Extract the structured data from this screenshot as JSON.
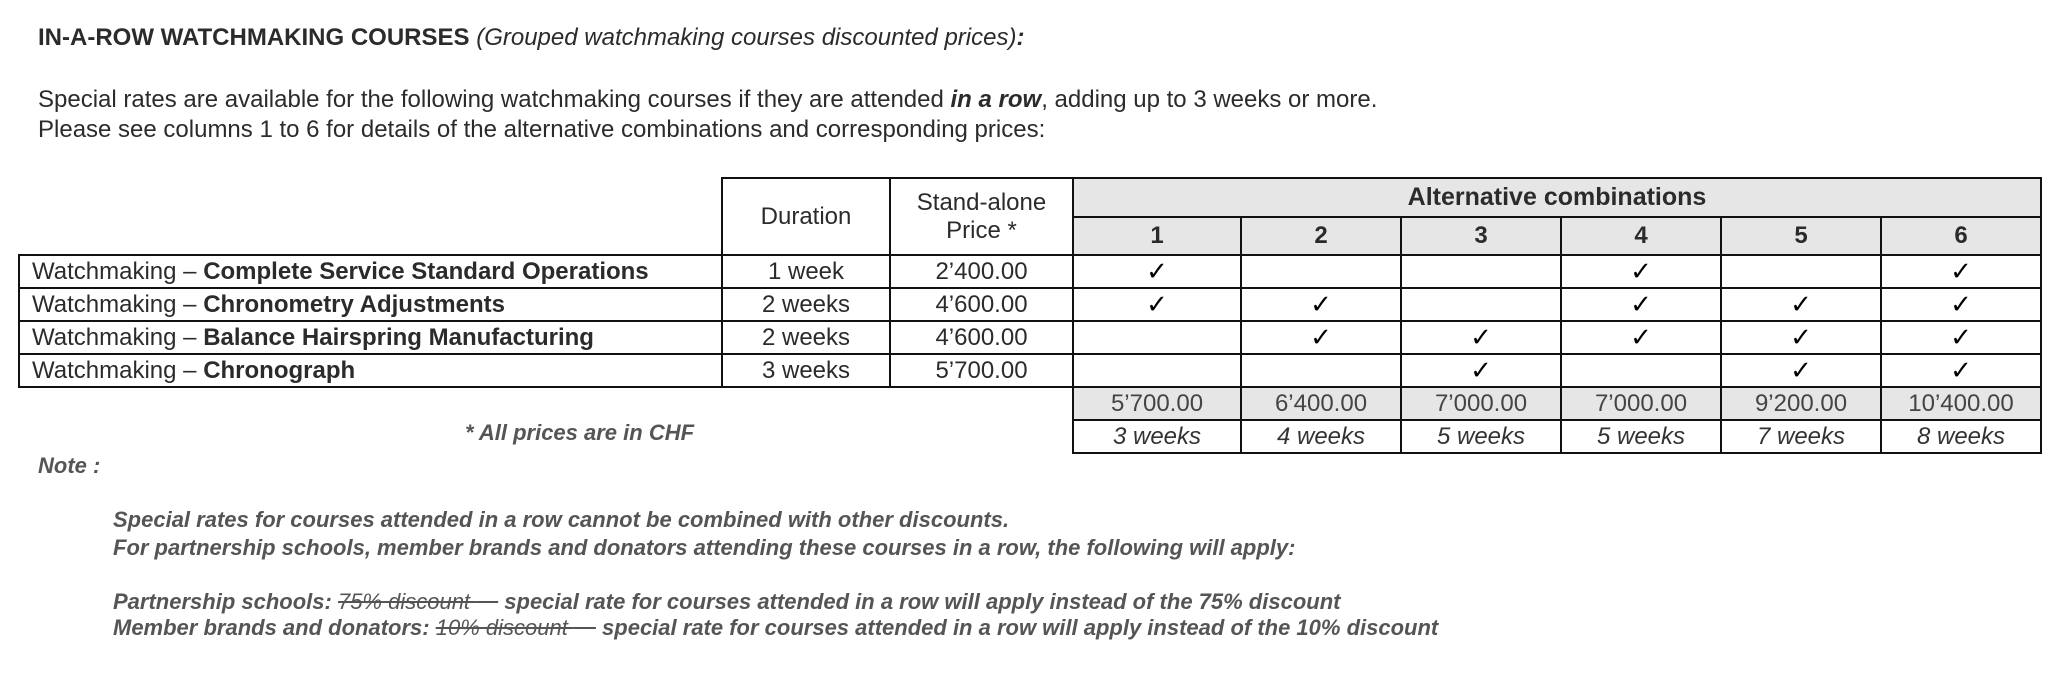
{
  "heading": {
    "title_bold": "IN-A-ROW WATCHMAKING COURSES",
    "title_italic": "(Grouped watchmaking courses discounted prices)",
    "title_colon": ":"
  },
  "intro": {
    "line1_pre": "Special rates are available for the following watchmaking courses if they are attended ",
    "line1_emph": "in a row",
    "line1_post": ", adding up to 3 weeks or more.",
    "line2": "Please see columns 1 to 6 for details of the alternative combinations and corresponding prices:"
  },
  "table": {
    "headers": {
      "duration": "Duration",
      "price_line1": "Stand-alone",
      "price_line2": "Price *",
      "alternatives": "Alternative combinations",
      "combo_numbers": [
        "1",
        "2",
        "3",
        "4",
        "5",
        "6"
      ]
    },
    "check_glyph": "✓",
    "rows": [
      {
        "prefix": "Watchmaking – ",
        "course": "Complete Service Standard Operations",
        "duration": "1 week",
        "price": "2’400.00",
        "combos": [
          true,
          false,
          false,
          true,
          false,
          true
        ]
      },
      {
        "prefix": "Watchmaking – ",
        "course": "Chronometry Adjustments",
        "duration": "2 weeks",
        "price": "4’600.00",
        "combos": [
          true,
          true,
          false,
          true,
          true,
          true
        ]
      },
      {
        "prefix": "Watchmaking – ",
        "course": "Balance Hairspring Manufacturing",
        "duration": "2 weeks",
        "price": "4’600.00",
        "combos": [
          false,
          true,
          true,
          true,
          true,
          true
        ]
      },
      {
        "prefix": "Watchmaking – ",
        "course": "Chronograph",
        "duration": "3 weeks",
        "price": "5’700.00",
        "combos": [
          false,
          false,
          true,
          false,
          true,
          true
        ]
      }
    ],
    "combo_prices": [
      "5’700.00",
      "6’400.00",
      "7’000.00",
      "7’000.00",
      "9’200.00",
      "10’400.00"
    ],
    "combo_weeks": [
      "3 weeks",
      "4 weeks",
      "5 weeks",
      "5 weeks",
      "7 weeks",
      "8 weeks"
    ],
    "currency_note": "* All prices are in CHF"
  },
  "notes": {
    "label": "Note :",
    "line1": "Special rates for courses attended in a row cannot be combined with other discounts.",
    "line2": "For partnership schools, member brands and donators attending these courses in a row, the following will apply:",
    "partnership_label": "Partnership schools: ",
    "partnership_struck": "75% discount ",
    "partnership_text": " special rate for courses attended in a row will apply instead of the 75% discount",
    "member_label": "Member brands and donators: ",
    "member_struck": "10% discount ",
    "member_text": " special rate for courses attended in a row will apply instead of the 10% discount"
  }
}
